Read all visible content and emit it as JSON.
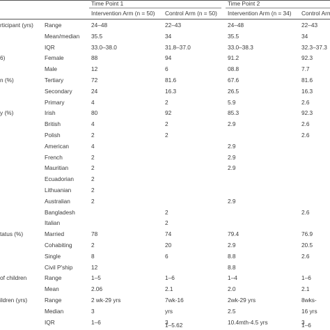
{
  "header": {
    "time_point_1": "Time Point 1",
    "time_point_2": "Time Point 2",
    "intervention_1": "Intervention Arm (n = 50)",
    "control_1": "Control Arm (n = 50)",
    "intervention_2": "Intervention Arm (n = 34)",
    "control_2": "Control Arm"
  },
  "rows": [
    {
      "group": "rticipant (yrs)",
      "label": "Range",
      "c1": "24–48",
      "c2": "22–43",
      "c3": "24–48",
      "c4": "22–43"
    },
    {
      "group": "",
      "label": "Mean/median",
      "c1": "35.5",
      "c2": "34",
      "c3": "35.5",
      "c4": "34"
    },
    {
      "group": "",
      "label": "IQR",
      "c1": "33.0–38.0",
      "c2": "31.8–37.0",
      "c3": "33.0–38.3",
      "c4": "32.3–37.3"
    },
    {
      "group": "6)",
      "label": "Female",
      "c1": "88",
      "c2": "94",
      "c3": "91.2",
      "c4": "92.3"
    },
    {
      "group": "",
      "label": "Male",
      "c1": "12",
      "c2": "6",
      "c3": "08.8",
      "c4": "7.7"
    },
    {
      "group": "n (%)",
      "label": "Tertiary",
      "c1": "72",
      "c2": "81.6",
      "c3": "67.6",
      "c4": "81.6"
    },
    {
      "group": "",
      "label": "Secondary",
      "c1": "24",
      "c2": "16.3",
      "c3": "26.5",
      "c4": "16.3"
    },
    {
      "group": "",
      "label": "Primary",
      "c1": "4",
      "c2": "2",
      "c3": "5.9",
      "c4": "2.6"
    },
    {
      "group": "y (%)",
      "label": "Irish",
      "c1": "80",
      "c2": "92",
      "c3": "85.3",
      "c4": "92.3"
    },
    {
      "group": "",
      "label": "British",
      "c1": "4",
      "c2": "2",
      "c3": "2.9",
      "c4": "2.6"
    },
    {
      "group": "",
      "label": "Polish",
      "c1": "2",
      "c2": "2",
      "c3": "",
      "c4": "2.6"
    },
    {
      "group": "",
      "label": "American",
      "c1": "4",
      "c2": "",
      "c3": "2.9",
      "c4": ""
    },
    {
      "group": "",
      "label": "French",
      "c1": "2",
      "c2": "",
      "c3": "2.9",
      "c4": ""
    },
    {
      "group": "",
      "label": "Mauritian",
      "c1": "2",
      "c2": "",
      "c3": "2.9",
      "c4": ""
    },
    {
      "group": "",
      "label": "Ecuadorian",
      "c1": "2",
      "c2": "",
      "c3": "",
      "c4": ""
    },
    {
      "group": "",
      "label": "Lithuanian",
      "c1": "2",
      "c2": "",
      "c3": "",
      "c4": ""
    },
    {
      "group": "",
      "label": "Australian",
      "c1": "2",
      "c2": "",
      "c3": "2.9",
      "c4": ""
    },
    {
      "group": "",
      "label": "Bangladesh",
      "c1": "",
      "c2": "2",
      "c3": "",
      "c4": "2.6"
    },
    {
      "group": "",
      "label": "Italian",
      "c1": "",
      "c2": "2",
      "c3": "",
      "c4": ""
    },
    {
      "group": "tatus (%)",
      "label": "Married",
      "c1": "78",
      "c2": "74",
      "c3": "79.4",
      "c4": "76.9"
    },
    {
      "group": "",
      "label": "Cohabiting",
      "c1": "2",
      "c2": "20",
      "c3": "2.9",
      "c4": "20.5"
    },
    {
      "group": "",
      "label": "Single",
      "c1": "8",
      "c2": "6",
      "c3": "8.8",
      "c4": "2.6"
    },
    {
      "group": "",
      "label": "Civil P'ship",
      "c1": "12",
      "c2": "",
      "c3": "8.8",
      "c4": ""
    },
    {
      "group": "of children",
      "label": "Range",
      "c1": "1–5",
      "c2": "1–6",
      "c3": "1–4",
      "c4": "1–6"
    },
    {
      "group": "",
      "label": "Mean",
      "c1": "2.06",
      "c2": "2.1",
      "c3": "2.0",
      "c4": "2.1"
    },
    {
      "group": "ildren (yrs)",
      "label": "Range",
      "c1": "2 wk-29 yrs",
      "c2": "7wk-16",
      "c3": "2wk-29 yrs",
      "c4": "8wks-"
    },
    {
      "group": "",
      "label": "Median",
      "c1": "3",
      "c2": "yrs",
      "c3": "2.5",
      "c4": "16 yrs"
    },
    {
      "group": "",
      "label": "IQR",
      "c1": "1–6",
      "c2": "3",
      "c3": "10.4mth-4.5 yrs",
      "c4": "3"
    }
  ],
  "trailing": {
    "c2": "1–5.62",
    "c4": "1–6"
  }
}
